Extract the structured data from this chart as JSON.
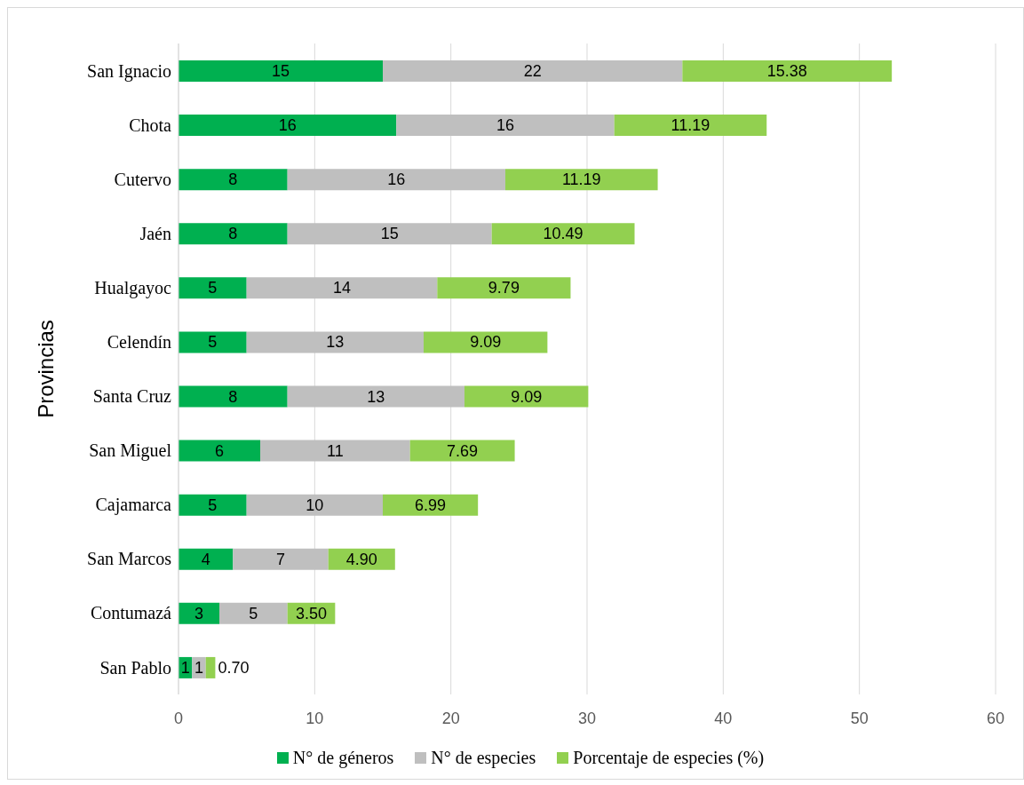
{
  "chart_data": {
    "type": "bar",
    "orientation": "horizontal",
    "stacked": true,
    "ylabel": "Provincias",
    "categories": [
      "San Ignacio",
      "Chota",
      "Cutervo",
      "Jaén",
      "Hualgayoc",
      "Celendín",
      "Santa Cruz",
      "San Miguel",
      "Cajamarca",
      "San Marcos",
      "Contumazá",
      "San Pablo"
    ],
    "series": [
      {
        "name": "N° de géneros",
        "color": "#00b050",
        "values": [
          15,
          16,
          8,
          8,
          5,
          5,
          8,
          6,
          5,
          4,
          3,
          1
        ]
      },
      {
        "name": "N° de especies",
        "color": "#bfbfbf",
        "values": [
          22,
          16,
          16,
          15,
          14,
          13,
          13,
          11,
          10,
          7,
          5,
          1
        ]
      },
      {
        "name": "Porcentaje de especies (%)",
        "color": "#92d050",
        "values": [
          15.38,
          11.19,
          11.19,
          10.49,
          9.79,
          9.09,
          9.09,
          7.69,
          6.99,
          4.9,
          3.5,
          0.7
        ],
        "value_labels": [
          "15.38",
          "11.19",
          "11.19",
          "10.49",
          "9.79",
          "9.09",
          "9.09",
          "7.69",
          "6.99",
          "4.90",
          "3.50",
          "0.70"
        ]
      }
    ],
    "xlim": [
      0,
      60
    ],
    "xticks": [
      0,
      10,
      20,
      30,
      40,
      50,
      60
    ],
    "grid": "x",
    "legend": "bottom",
    "data_labels": true
  }
}
